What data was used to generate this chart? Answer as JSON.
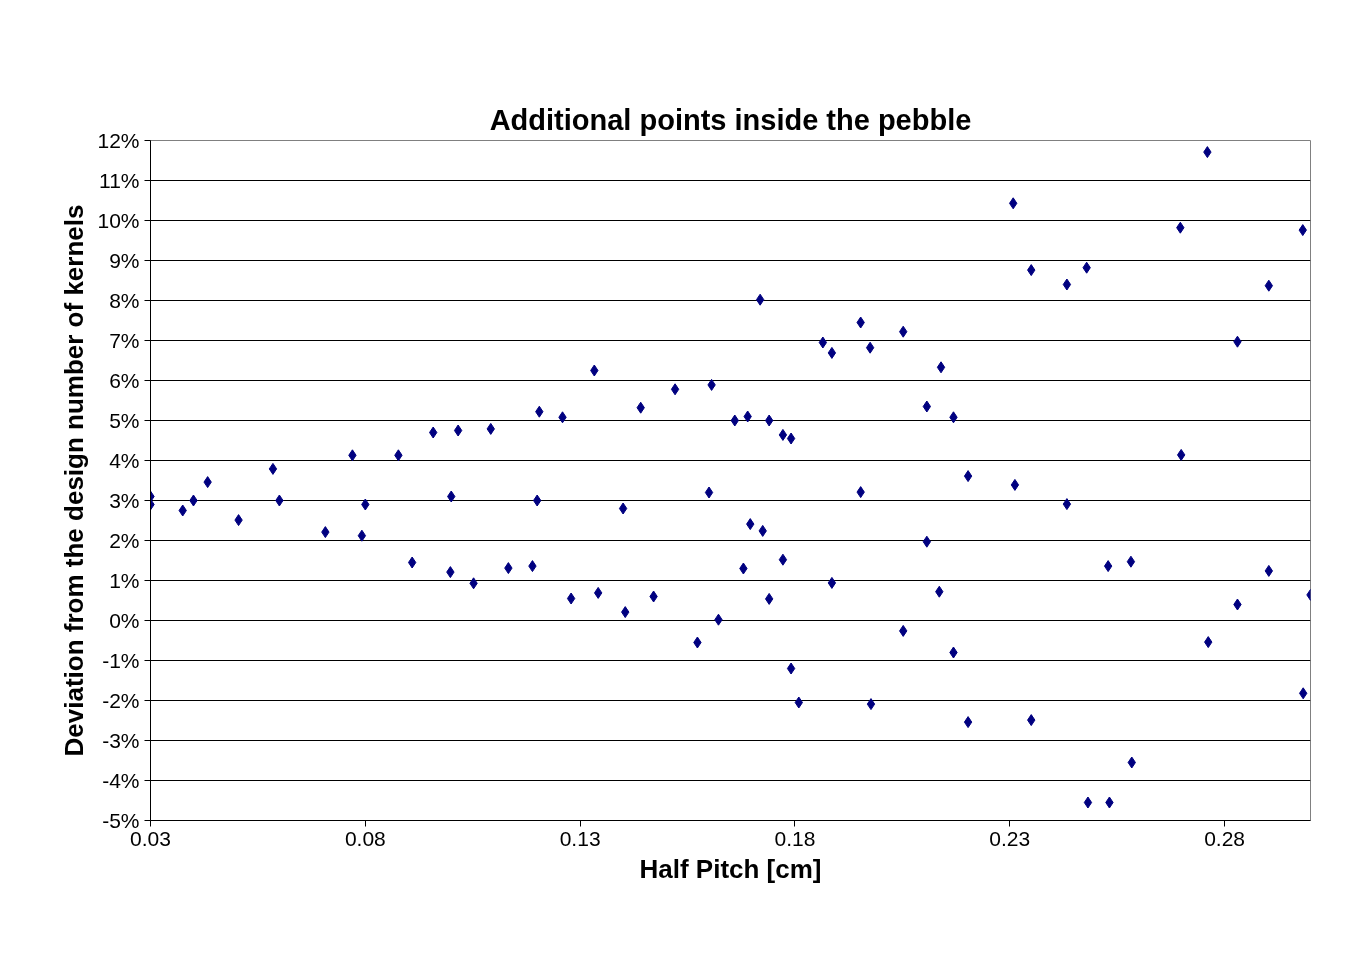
{
  "chart_data": {
    "type": "scatter",
    "title": "Additional points inside the pebble",
    "xlabel": "Half Pitch [cm]",
    "ylabel": "Deviation from the design number of kernels",
    "xlim": [
      0.03,
      0.3
    ],
    "xticks": [
      0.03,
      0.08,
      0.13,
      0.18,
      0.23,
      0.28
    ],
    "ylim": [
      -5,
      12
    ],
    "yticks": [
      {
        "value": -5,
        "label": "-5%"
      },
      {
        "value": -4,
        "label": "-4%"
      },
      {
        "value": -3,
        "label": "-3%"
      },
      {
        "value": -2,
        "label": "-2%"
      },
      {
        "value": -1,
        "label": "-1%"
      },
      {
        "value": 0,
        "label": "0%"
      },
      {
        "value": 1,
        "label": "1%"
      },
      {
        "value": 2,
        "label": "2%"
      },
      {
        "value": 3,
        "label": "3%"
      },
      {
        "value": 4,
        "label": "4%"
      },
      {
        "value": 5,
        "label": "5%"
      },
      {
        "value": 6,
        "label": "6%"
      },
      {
        "value": 7,
        "label": "7%"
      },
      {
        "value": 8,
        "label": "8%"
      },
      {
        "value": 9,
        "label": "9%"
      },
      {
        "value": 10,
        "label": "10%"
      },
      {
        "value": 11,
        "label": "11%"
      },
      {
        "value": 12,
        "label": "12%"
      }
    ],
    "grid": "y",
    "marker": "diamond",
    "series": [
      {
        "color": "#000080",
        "x": [
          0.03,
          0.03,
          0.0375,
          0.04,
          0.0433,
          0.0505,
          0.0585,
          0.06,
          0.0707,
          0.077,
          0.08,
          0.0792,
          0.0877,
          0.0909,
          0.0958,
          0.0998,
          0.1,
          0.1016,
          0.1052,
          0.1092,
          0.1133,
          0.1189,
          0.12,
          0.1205,
          0.1259,
          0.1279,
          0.1333,
          0.1342,
          0.14,
          0.1405,
          0.1441,
          0.1471,
          0.1521,
          0.1573,
          0.16,
          0.1606,
          0.1622,
          0.166,
          0.169,
          0.168,
          0.1696,
          0.1719,
          0.1725,
          0.174,
          0.174,
          0.1772,
          0.1772,
          0.1791,
          0.1791,
          0.1865,
          0.1809,
          0.1886,
          0.1886,
          0.1953,
          0.1953,
          0.1975,
          0.1977,
          0.2052,
          0.2052,
          0.2107,
          0.2107,
          0.214,
          0.2136,
          0.2169,
          0.2169,
          0.2203,
          0.2203,
          0.2308,
          0.2312,
          0.235,
          0.235,
          0.2433,
          0.2433,
          0.2479,
          0.2482,
          0.2529,
          0.2532,
          0.2582,
          0.2584,
          0.2697,
          0.2699,
          0.276,
          0.2762,
          0.283,
          0.283,
          0.2903,
          0.2903,
          0.2982,
          0.2983,
          0.3
        ],
        "values": [
          3.1,
          2.9,
          2.75,
          3.0,
          3.46,
          2.51,
          3.79,
          3.0,
          2.21,
          4.13,
          2.9,
          2.12,
          4.13,
          1.45,
          4.7,
          1.21,
          3.1,
          4.75,
          0.93,
          4.79,
          1.31,
          1.36,
          3.0,
          5.22,
          5.08,
          0.55,
          6.25,
          0.69,
          2.8,
          0.21,
          5.32,
          0.6,
          5.78,
          -0.55,
          3.2,
          5.89,
          0.02,
          5.0,
          5.1,
          1.3,
          2.41,
          8.02,
          2.24,
          5.0,
          0.54,
          4.64,
          1.52,
          4.55,
          -1.2,
          6.95,
          -2.05,
          6.69,
          0.94,
          7.45,
          3.21,
          6.82,
          -2.09,
          7.22,
          -0.26,
          5.35,
          1.97,
          6.33,
          0.72,
          5.08,
          -0.8,
          3.61,
          -2.54,
          10.43,
          3.39,
          8.76,
          -2.49,
          8.4,
          2.91,
          8.82,
          -4.55,
          1.36,
          -4.55,
          1.47,
          -3.55,
          9.82,
          4.14,
          11.71,
          -0.54,
          6.97,
          0.4,
          8.37,
          1.24,
          9.76,
          -1.82,
          0.64
        ]
      }
    ]
  }
}
